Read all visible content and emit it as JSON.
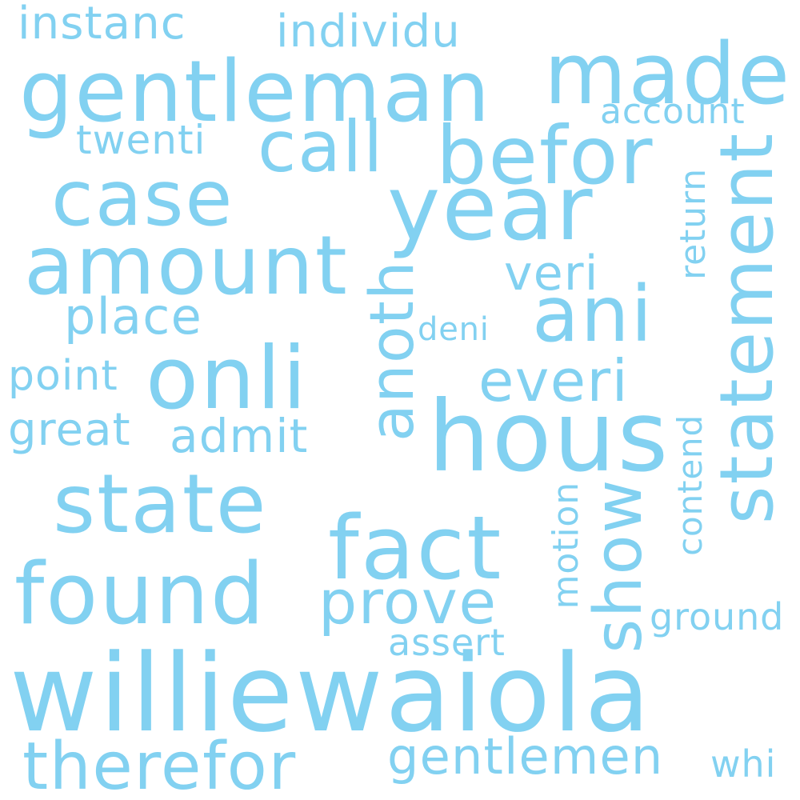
{
  "word_color": "#82d1f1",
  "background_color": "#ffffff",
  "words": {
    "instanc": "instanc",
    "individu": "individu",
    "gentleman": "gentleman",
    "made": "made",
    "account": "account",
    "twenti": "twenti",
    "call": "call",
    "befor": "befor",
    "case": "case",
    "year": "year",
    "statement": "statement",
    "return": "return",
    "amount": "amount",
    "veri": "veri",
    "anoth": "anoth",
    "ani": "ani",
    "place": "place",
    "deni": "deni",
    "point": "point",
    "onli": "onli",
    "everi": "everi",
    "great": "great",
    "admit": "admit",
    "hous": "hous",
    "contend": "contend",
    "state": "state",
    "fact": "fact",
    "show": "show",
    "motion": "motion",
    "found": "found",
    "prove": "prove",
    "ground": "ground",
    "assert": "assert",
    "williewaiola": "williewaiola",
    "therefor": "therefor",
    "gentlemen": "gentlemen",
    "whi": "whi"
  }
}
